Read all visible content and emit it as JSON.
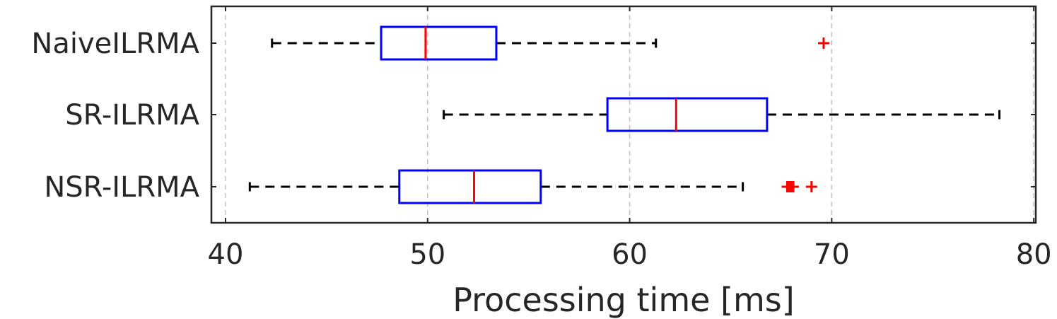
{
  "chart_data": {
    "type": "boxplot",
    "xlabel": "Processing time [ms]",
    "xlim": [
      39.3,
      80.1
    ],
    "xticks": [
      40,
      50,
      60,
      70,
      80
    ],
    "xtick_labels": [
      "40",
      "50",
      "60",
      "70",
      "80"
    ],
    "grid": "vertical dashed",
    "colors": {
      "box": "#0000ff",
      "median": "#ff0000",
      "whisker": "#000000",
      "outlier": "#ff0000",
      "grid": "#c0c0c0",
      "axis": "#262626"
    },
    "series": [
      {
        "name": "NaiveILRMA",
        "whisker_low": 42.3,
        "q1": 47.7,
        "median": 49.9,
        "q3": 53.4,
        "whisker_high": 61.3,
        "outliers": [
          69.6
        ]
      },
      {
        "name": "SR-ILRMA",
        "whisker_low": 50.8,
        "q1": 58.9,
        "median": 62.3,
        "q3": 66.8,
        "whisker_high": 78.3,
        "outliers": []
      },
      {
        "name": "NSR-ILRMA",
        "whisker_low": 41.2,
        "q1": 48.6,
        "median": 52.3,
        "q3": 55.6,
        "whisker_high": 65.6,
        "outliers": [
          67.8,
          67.9,
          68.0,
          68.1,
          69.0
        ]
      }
    ]
  }
}
